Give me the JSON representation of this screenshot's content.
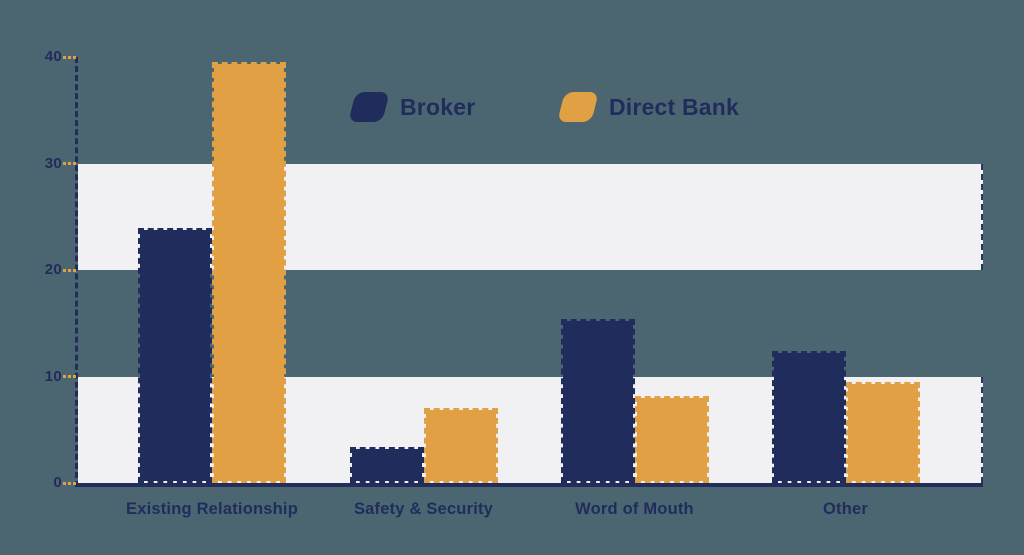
{
  "chart": {
    "background_color": "#4c6671",
    "band_color": "#f1f0f2",
    "axis_color": "#232d5c",
    "label_color": "#202d5c",
    "tick_color": "#e2a045"
  },
  "legend": {
    "items": [
      {
        "label": "Broker",
        "color": "#202d5c"
      },
      {
        "label": "Direct Bank",
        "color": "#e2a045"
      }
    ]
  },
  "chart_data": {
    "type": "bar",
    "title": "",
    "xlabel": "",
    "ylabel": "",
    "categories": [
      "Existing Relationship",
      "Safety & Security",
      "Word of Mouth",
      "Other"
    ],
    "series": [
      {
        "name": "Broker",
        "color": "#202d5c",
        "values": [
          23.9,
          3.4,
          15.4,
          12.4
        ]
      },
      {
        "name": "Direct Bank",
        "color": "#e2a045",
        "values": [
          39.5,
          7.0,
          8.2,
          9.5
        ]
      }
    ],
    "ylim": [
      0,
      40
    ],
    "y_ticks": [
      0,
      10,
      20,
      30,
      40
    ],
    "grid_bands": [
      [
        20,
        30
      ],
      [
        0,
        10
      ]
    ],
    "grid": "horizontal-bands",
    "legend_position": "top-center"
  }
}
